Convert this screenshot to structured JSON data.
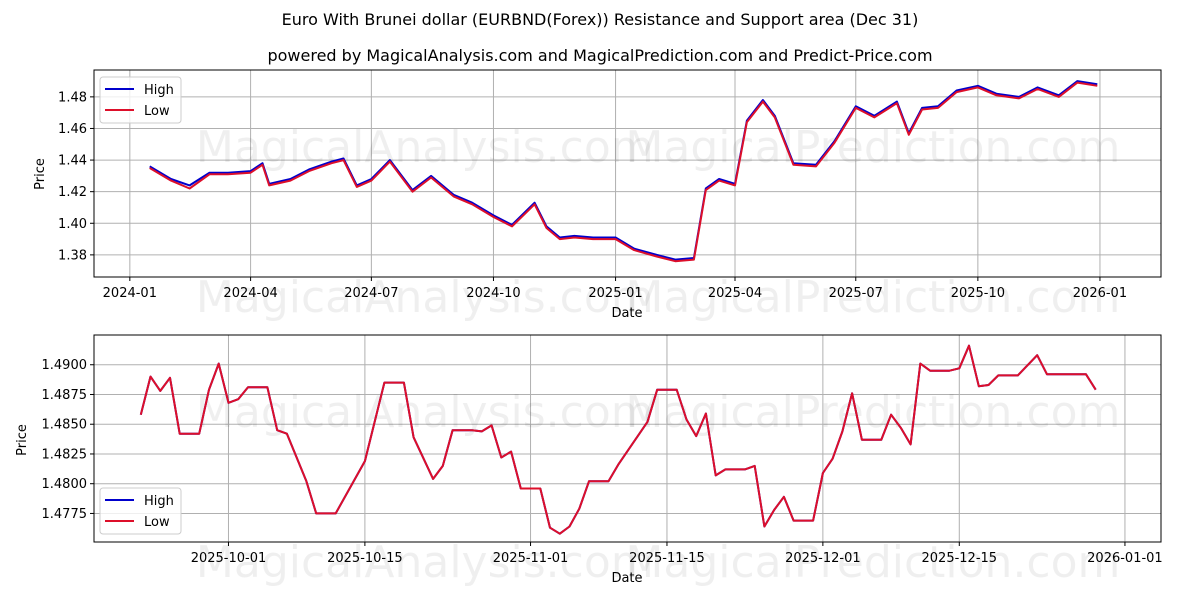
{
  "header": {
    "title": "Euro With Brunei dollar (EURBND(Forex)) Resistance and Support area (Dec 31)",
    "subtitle": "powered by MagicalAnalysis.com and MagicalPrediction.com and Predict-Price.com"
  },
  "watermarks": [
    "MagicalAnalysis.com",
    "MagicalPrediction.com"
  ],
  "colors": {
    "high": "#0000cc",
    "low": "#dd0f2a",
    "grid": "#b0b0b0"
  },
  "chart_data": [
    {
      "type": "line",
      "title": "Euro With Brunei dollar (EURBND(Forex)) Resistance and Support area (Dec 31)",
      "xlabel": "Date",
      "ylabel": "Price",
      "ylim": [
        1.366,
        1.497
      ],
      "grid": true,
      "legend_position": "upper left",
      "x_ticks": [
        "2024-01",
        "2024-04",
        "2024-07",
        "2024-10",
        "2025-01",
        "2025-04",
        "2025-07",
        "2025-10",
        "2026-01"
      ],
      "y_ticks": [
        "1.38",
        "1.40",
        "1.42",
        "1.44",
        "1.46",
        "1.48"
      ],
      "x": [
        "2024-01-16",
        "2024-02-01",
        "2024-02-15",
        "2024-03-01",
        "2024-03-15",
        "2024-04-01",
        "2024-04-10",
        "2024-04-15",
        "2024-05-01",
        "2024-05-15",
        "2024-06-01",
        "2024-06-10",
        "2024-06-20",
        "2024-07-01",
        "2024-07-15",
        "2024-08-01",
        "2024-08-15",
        "2024-09-01",
        "2024-09-15",
        "2024-10-01",
        "2024-10-15",
        "2024-11-01",
        "2024-11-10",
        "2024-11-20",
        "2024-12-01",
        "2024-12-15",
        "2025-01-01",
        "2025-01-15",
        "2025-02-01",
        "2025-02-15",
        "2025-03-01",
        "2025-03-10",
        "2025-03-20",
        "2025-04-01",
        "2025-04-10",
        "2025-04-22",
        "2025-05-01",
        "2025-05-15",
        "2025-06-01",
        "2025-06-15",
        "2025-07-01",
        "2025-07-15",
        "2025-08-01",
        "2025-08-10",
        "2025-08-20",
        "2025-09-01",
        "2025-09-15",
        "2025-10-01",
        "2025-10-15",
        "2025-11-01",
        "2025-11-15",
        "2025-12-01",
        "2025-12-15",
        "2025-12-30"
      ],
      "series": [
        {
          "name": "High",
          "values": [
            1.436,
            1.428,
            1.424,
            1.432,
            1.432,
            1.433,
            1.438,
            1.425,
            1.428,
            1.434,
            1.439,
            1.441,
            1.424,
            1.428,
            1.44,
            1.421,
            1.43,
            1.418,
            1.413,
            1.405,
            1.399,
            1.413,
            1.398,
            1.391,
            1.392,
            1.391,
            1.391,
            1.384,
            1.38,
            1.377,
            1.378,
            1.422,
            1.428,
            1.425,
            1.465,
            1.478,
            1.468,
            1.438,
            1.437,
            1.452,
            1.474,
            1.468,
            1.477,
            1.457,
            1.473,
            1.474,
            1.484,
            1.487,
            1.482,
            1.48,
            1.486,
            1.481,
            1.49,
            1.488
          ]
        },
        {
          "name": "Low",
          "values": [
            1.435,
            1.427,
            1.422,
            1.431,
            1.431,
            1.432,
            1.437,
            1.424,
            1.427,
            1.433,
            1.438,
            1.44,
            1.423,
            1.427,
            1.439,
            1.42,
            1.429,
            1.417,
            1.412,
            1.404,
            1.398,
            1.412,
            1.397,
            1.39,
            1.391,
            1.39,
            1.39,
            1.383,
            1.379,
            1.376,
            1.377,
            1.421,
            1.427,
            1.424,
            1.464,
            1.477,
            1.467,
            1.437,
            1.436,
            1.451,
            1.473,
            1.467,
            1.476,
            1.456,
            1.472,
            1.473,
            1.483,
            1.486,
            1.481,
            1.479,
            1.485,
            1.48,
            1.489,
            1.487
          ]
        }
      ]
    },
    {
      "type": "line",
      "title": "",
      "xlabel": "Date",
      "ylabel": "Price",
      "ylim": [
        1.4751,
        1.4925
      ],
      "grid": true,
      "legend_position": "lower left",
      "x_ticks": [
        "2025-10-01",
        "2025-10-15",
        "2025-11-01",
        "2025-11-15",
        "2025-12-01",
        "2025-12-15",
        "2026-01-01"
      ],
      "y_ticks": [
        "1.4775",
        "1.4800",
        "1.4825",
        "1.4850",
        "1.4875",
        "1.4900"
      ],
      "x": [
        "2025-09-22",
        "2025-09-23",
        "2025-09-24",
        "2025-09-25",
        "2025-09-26",
        "2025-09-28",
        "2025-09-29",
        "2025-09-30",
        "2025-10-01",
        "2025-10-02",
        "2025-10-03",
        "2025-10-05",
        "2025-10-06",
        "2025-10-07",
        "2025-10-09",
        "2025-10-10",
        "2025-10-12",
        "2025-10-15",
        "2025-10-17",
        "2025-10-19",
        "2025-10-20",
        "2025-10-22",
        "2025-10-23",
        "2025-10-24",
        "2025-10-26",
        "2025-10-27",
        "2025-10-28",
        "2025-10-29",
        "2025-10-30",
        "2025-10-31",
        "2025-11-02",
        "2025-11-03",
        "2025-11-04",
        "2025-11-05",
        "2025-11-06",
        "2025-11-07",
        "2025-11-09",
        "2025-11-10",
        "2025-11-13",
        "2025-11-14",
        "2025-11-16",
        "2025-11-17",
        "2025-11-18",
        "2025-11-19",
        "2025-11-20",
        "2025-11-21",
        "2025-11-23",
        "2025-11-24",
        "2025-11-25",
        "2025-11-26",
        "2025-11-27",
        "2025-11-28",
        "2025-11-30",
        "2025-12-01",
        "2025-12-02",
        "2025-12-03",
        "2025-12-04",
        "2025-12-05",
        "2025-12-07",
        "2025-12-08",
        "2025-12-09",
        "2025-12-10",
        "2025-12-11",
        "2025-12-12",
        "2025-12-14",
        "2025-12-15",
        "2025-12-16",
        "2025-12-17",
        "2025-12-18",
        "2025-12-19",
        "2025-12-21",
        "2025-12-23",
        "2025-12-24",
        "2025-12-28",
        "2025-12-29"
      ],
      "series": [
        {
          "name": "High",
          "values": [
            1.4858,
            1.489,
            1.4878,
            1.4889,
            1.4842,
            1.4842,
            1.4879,
            1.4901,
            1.4868,
            1.4871,
            1.4881,
            1.4881,
            1.4845,
            1.4842,
            1.4802,
            1.4775,
            1.4775,
            1.4819,
            1.4885,
            1.4885,
            1.4839,
            1.4804,
            1.4815,
            1.4845,
            1.4845,
            1.4844,
            1.4849,
            1.4822,
            1.4827,
            1.4796,
            1.4796,
            1.4763,
            1.4758,
            1.4764,
            1.4779,
            1.4802,
            1.4802,
            1.4816,
            1.4852,
            1.4879,
            1.4879,
            1.4854,
            1.484,
            1.4859,
            1.4807,
            1.4812,
            1.4812,
            1.4815,
            1.4764,
            1.4778,
            1.4789,
            1.4769,
            1.4769,
            1.4809,
            1.4821,
            1.4844,
            1.4876,
            1.4837,
            1.4837,
            1.4858,
            1.4847,
            1.4833,
            1.4901,
            1.4895,
            1.4895,
            1.4897,
            1.4916,
            1.4882,
            1.4883,
            1.4891,
            1.4891,
            1.4908,
            1.4892,
            1.4892,
            1.4879
          ]
        },
        {
          "name": "Low",
          "values": [
            1.4858,
            1.489,
            1.4878,
            1.4889,
            1.4842,
            1.4842,
            1.4879,
            1.4901,
            1.4868,
            1.4871,
            1.4881,
            1.4881,
            1.4845,
            1.4842,
            1.4802,
            1.4775,
            1.4775,
            1.4819,
            1.4885,
            1.4885,
            1.4839,
            1.4804,
            1.4815,
            1.4845,
            1.4845,
            1.4844,
            1.4849,
            1.4822,
            1.4827,
            1.4796,
            1.4796,
            1.4763,
            1.4758,
            1.4764,
            1.4779,
            1.4802,
            1.4802,
            1.4816,
            1.4852,
            1.4879,
            1.4879,
            1.4854,
            1.484,
            1.4859,
            1.4807,
            1.4812,
            1.4812,
            1.4815,
            1.4764,
            1.4778,
            1.4789,
            1.4769,
            1.4769,
            1.4809,
            1.4821,
            1.4844,
            1.4876,
            1.4837,
            1.4837,
            1.4858,
            1.4847,
            1.4833,
            1.4901,
            1.4895,
            1.4895,
            1.4897,
            1.4916,
            1.4882,
            1.4883,
            1.4891,
            1.4891,
            1.4908,
            1.4892,
            1.4892,
            1.4879
          ]
        }
      ]
    }
  ]
}
